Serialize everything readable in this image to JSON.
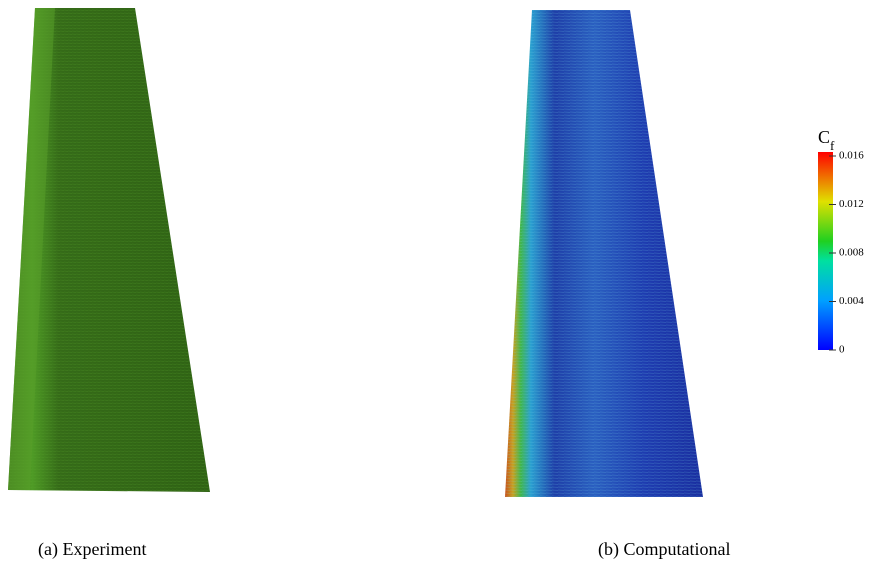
{
  "figures": [
    {
      "caption": "(a) Experiment"
    },
    {
      "caption": "(b) Computational"
    }
  ],
  "colorbar": {
    "title": "C",
    "title_subscript": "f",
    "lim": [
      0,
      0.016
    ],
    "ticks": [
      0,
      0.004,
      0.008,
      0.012,
      0.016
    ]
  }
}
